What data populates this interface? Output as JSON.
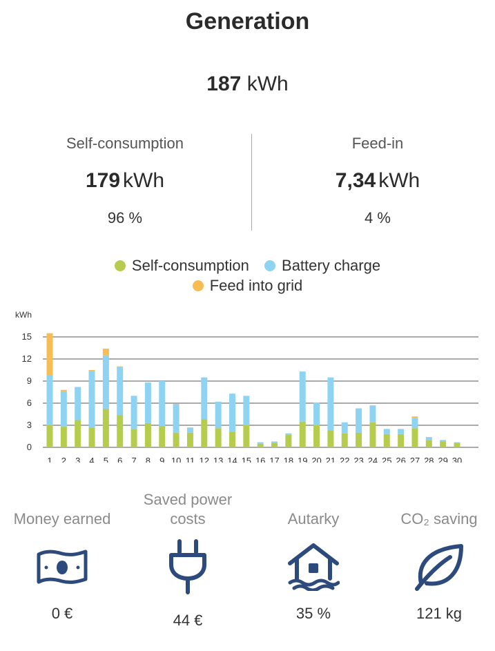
{
  "header": {
    "title": "Generation"
  },
  "total": {
    "value": "187",
    "unit": "kWh"
  },
  "self_consumption": {
    "label": "Self-consumption",
    "value": "179",
    "unit": "kWh",
    "percent": "96 %"
  },
  "feed_in": {
    "label": "Feed-in",
    "value": "7,34",
    "unit": "kWh",
    "percent": "4 %"
  },
  "legend": [
    {
      "label": "Self-consumption",
      "color": "#b5cc4f"
    },
    {
      "label": "Battery charge",
      "color": "#8fd3f2"
    },
    {
      "label": "Feed into grid",
      "color": "#f7bd54"
    }
  ],
  "chart_data": {
    "type": "bar",
    "stacked": true,
    "ylabel": "kWh",
    "ylim": [
      0,
      15
    ],
    "yticks": [
      0,
      3,
      6,
      9,
      12,
      15
    ],
    "categories": [
      "1",
      "2",
      "3",
      "4",
      "5",
      "6",
      "7",
      "8",
      "9",
      "10",
      "11",
      "12",
      "13",
      "14",
      "15",
      "16",
      "17",
      "18",
      "19",
      "20",
      "21",
      "22",
      "23",
      "24",
      "25",
      "26",
      "27",
      "28",
      "29",
      "30"
    ],
    "grid": true,
    "series": [
      {
        "name": "Self-consumption",
        "color": "#b5cc4f",
        "values": [
          3.0,
          2.8,
          3.7,
          2.7,
          5.2,
          4.4,
          2.5,
          3.3,
          2.9,
          2.0,
          2.0,
          3.8,
          2.6,
          2.1,
          3.0,
          0.5,
          0.6,
          1.7,
          3.5,
          3.0,
          2.3,
          1.9,
          2.0,
          3.4,
          1.8,
          1.8,
          2.6,
          1.0,
          0.8,
          0.6
        ]
      },
      {
        "name": "Battery charge",
        "color": "#8fd3f2",
        "values": [
          6.8,
          4.8,
          4.5,
          7.7,
          7.3,
          6.5,
          4.5,
          5.5,
          6.1,
          3.8,
          0.7,
          5.7,
          3.6,
          5.2,
          4.0,
          0.2,
          0.2,
          0.2,
          6.8,
          3.1,
          7.2,
          1.5,
          3.3,
          2.3,
          0.7,
          0.7,
          1.4,
          0.4,
          0.2,
          0.1
        ]
      },
      {
        "name": "Feed into grid",
        "color": "#f7bd54",
        "values": [
          5.7,
          0.2,
          0,
          0.1,
          0.9,
          0.1,
          0,
          0,
          0,
          0.1,
          0,
          0,
          0,
          0,
          0,
          0,
          0,
          0,
          0,
          0,
          0,
          0,
          0,
          0,
          0,
          0,
          0.2,
          0,
          0,
          0
        ]
      }
    ]
  },
  "kpis": [
    {
      "label": "Money earned",
      "value": "0 €",
      "icon": "banknote-icon"
    },
    {
      "label": "Saved power costs",
      "value": "44 €",
      "icon": "plug-icon"
    },
    {
      "label": "Autarky",
      "value": "35 %",
      "icon": "house-water-icon"
    },
    {
      "label": "CO₂ saving",
      "value": "121 kg",
      "icon": "leaf-icon"
    }
  ],
  "colors": {
    "icon": "#2d4a7c",
    "axis": "#333333",
    "grid": "#555555"
  }
}
